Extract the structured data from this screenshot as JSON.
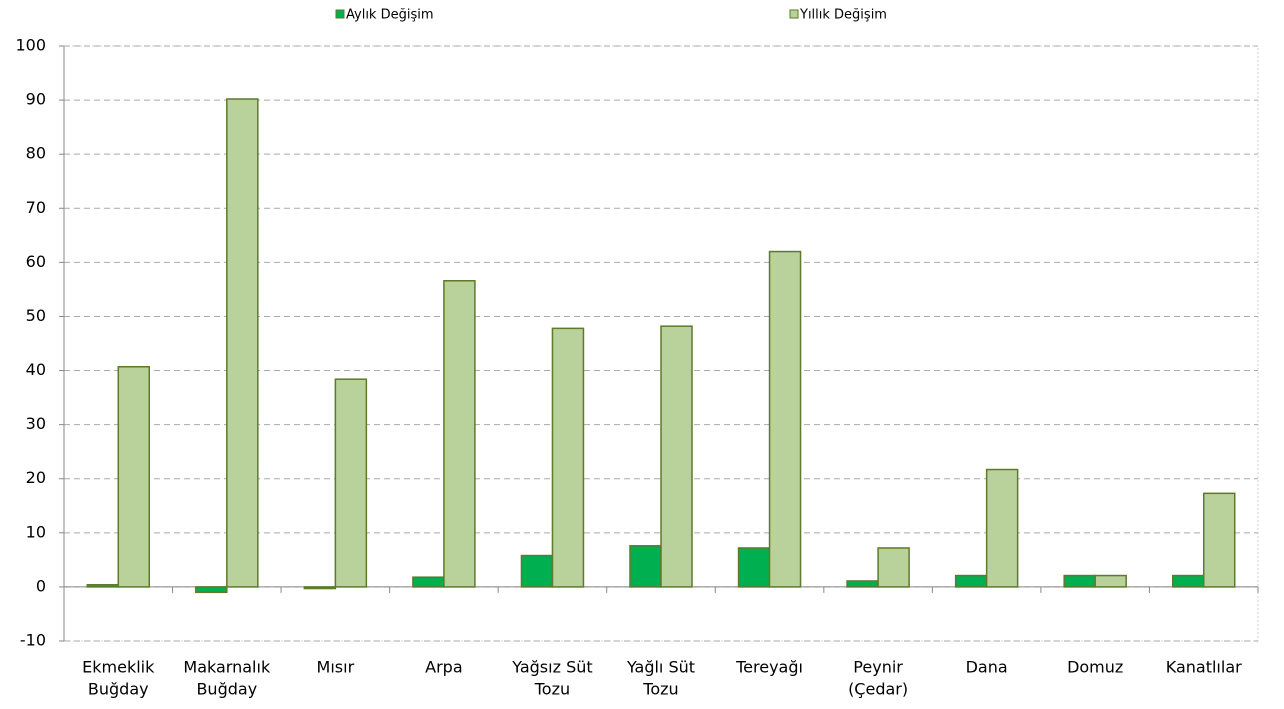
{
  "chart_data": {
    "type": "bar",
    "categories": [
      [
        "Ekmeklik",
        "Buğday"
      ],
      [
        "Makarnalık",
        "Buğday"
      ],
      [
        "Mısır"
      ],
      [
        "Arpa"
      ],
      [
        "Yağsız Süt",
        "Tozu"
      ],
      [
        "Yağlı Süt",
        "Tozu"
      ],
      [
        "Tereyağı"
      ],
      [
        "Peynir",
        "(Çedar)"
      ],
      [
        "Dana"
      ],
      [
        "Domuz"
      ],
      [
        "Kanatlılar"
      ]
    ],
    "series": [
      {
        "name": "Aylık Değişim",
        "color": "#00b050",
        "values": [
          0.4,
          -1,
          -0.3,
          1.8,
          5.8,
          7.6,
          7.2,
          1.1,
          2.1,
          2.1,
          2.1
        ]
      },
      {
        "name": "Yıllık Değişim",
        "color": "#b9d19a",
        "values": [
          40.7,
          90.2,
          38.4,
          56.6,
          47.8,
          48.2,
          62.0,
          7.2,
          21.7,
          2.1,
          17.3
        ]
      }
    ],
    "ylim": [
      -10,
      100
    ],
    "yticks": [
      -10,
      0,
      10,
      20,
      30,
      40,
      50,
      60,
      70,
      80,
      90,
      100
    ],
    "grid": true
  }
}
